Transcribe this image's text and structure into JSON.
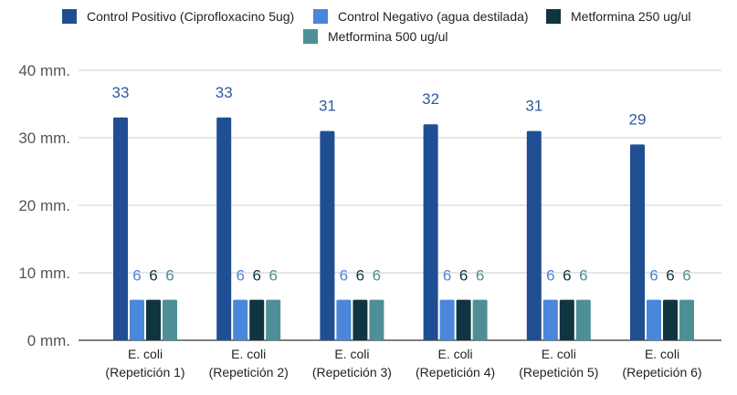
{
  "chart_data": {
    "type": "bar",
    "categories": [
      "E. coli\n(Repetición 1)",
      "E. coli\n(Repetición 2)",
      "E. coli\n(Repetición 3)",
      "E. coli\n(Repetición 4)",
      "E. coli\n(Repetición 5)",
      "E. coli\n(Repetición 6)"
    ],
    "series": [
      {
        "name": "Control Positivo (Ciprofloxacino 5ug)",
        "color": "#1f4e93",
        "label_color": "#2f5a9c",
        "values": [
          33,
          33,
          31,
          32,
          31,
          29
        ]
      },
      {
        "name": "Control Negativo (agua destilada)",
        "color": "#4a86d9",
        "label_color": "#4a86d9",
        "values": [
          6,
          6,
          6,
          6,
          6,
          6
        ]
      },
      {
        "name": "Metformina 250 ug/ul",
        "color": "#0f3540",
        "label_color": "#0f3540",
        "values": [
          6,
          6,
          6,
          6,
          6,
          6
        ]
      },
      {
        "name": "Metformina 500 ug/ul",
        "color": "#4e8f96",
        "label_color": "#4e8f96",
        "values": [
          6,
          6,
          6,
          6,
          6,
          6
        ]
      }
    ],
    "ylim": [
      0,
      40
    ],
    "yticks": [
      0,
      10,
      20,
      30,
      40
    ],
    "ytick_labels": [
      "0 mm.",
      "10 mm.",
      "20 mm.",
      "30 mm.",
      "40 mm."
    ],
    "grid": true,
    "legend_position": "top",
    "data_labels": true
  }
}
